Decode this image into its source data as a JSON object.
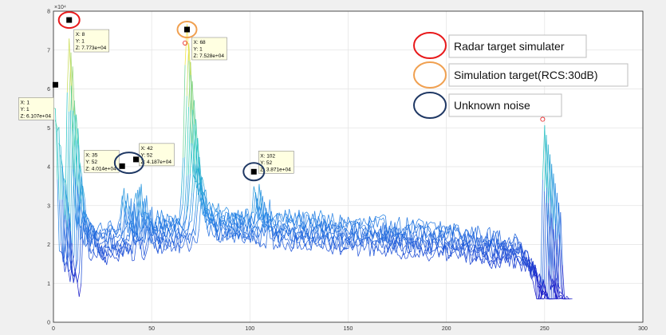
{
  "chart_data": {
    "type": "line",
    "axis": {
      "xlim": [
        0,
        300
      ],
      "ylim": [
        0,
        80000
      ],
      "xticks": [
        0,
        50,
        100,
        150,
        200,
        250,
        300
      ],
      "yticks": [
        0,
        10000,
        20000,
        30000,
        40000,
        50000,
        60000,
        70000,
        80000
      ],
      "ytick_labels": [
        "0",
        "1",
        "2",
        "3",
        "4",
        "5",
        "6",
        "7",
        "8"
      ],
      "exponent_label": "×10⁴",
      "grid": true
    },
    "datatips": [
      {
        "x": 1,
        "y": 1,
        "z": 61070,
        "lines": [
          "X: 1",
          "Y: 1",
          "Z: 6.107e+04"
        ]
      },
      {
        "x": 8,
        "y": 1,
        "z": 77730,
        "lines": [
          "X: 8",
          "Y: 1",
          "Z: 7.773e+04"
        ]
      },
      {
        "x": 35,
        "y": 52,
        "z": 40140,
        "lines": [
          "X: 35",
          "Y: 52",
          "Z: 4.014e+04"
        ]
      },
      {
        "x": 42,
        "y": 52,
        "z": 41870,
        "lines": [
          "X: 42",
          "Y: 52",
          "Z: 4.187e+04"
        ]
      },
      {
        "x": 68,
        "y": 1,
        "z": 75280,
        "lines": [
          "X: 68",
          "Y: 1",
          "Z: 7.528e+04"
        ]
      },
      {
        "x": 102,
        "y": 52,
        "z": 38710,
        "lines": [
          "X: 102",
          "Y: 52",
          "Z: 3.871e+04"
        ]
      }
    ],
    "peak_markers": [
      {
        "x": 67,
        "z": 71800
      },
      {
        "x": 249,
        "z": 52200
      }
    ],
    "legend": [
      {
        "label": "Radar target simulater",
        "color": "#e8191b"
      },
      {
        "label": "Simulation target(RCS:30dB)",
        "color": "#f0a050"
      },
      {
        "label": "Unknown noise",
        "color": "#1f3864"
      }
    ],
    "series_count": 10,
    "colors": {
      "low": "#1e1ec8",
      "mid": "#2a8ae6",
      "high": "#27c9c0",
      "peak": "#f5e23a",
      "axes_bg": "#ffffff",
      "figure_bg": "#f0f0f0"
    }
  }
}
